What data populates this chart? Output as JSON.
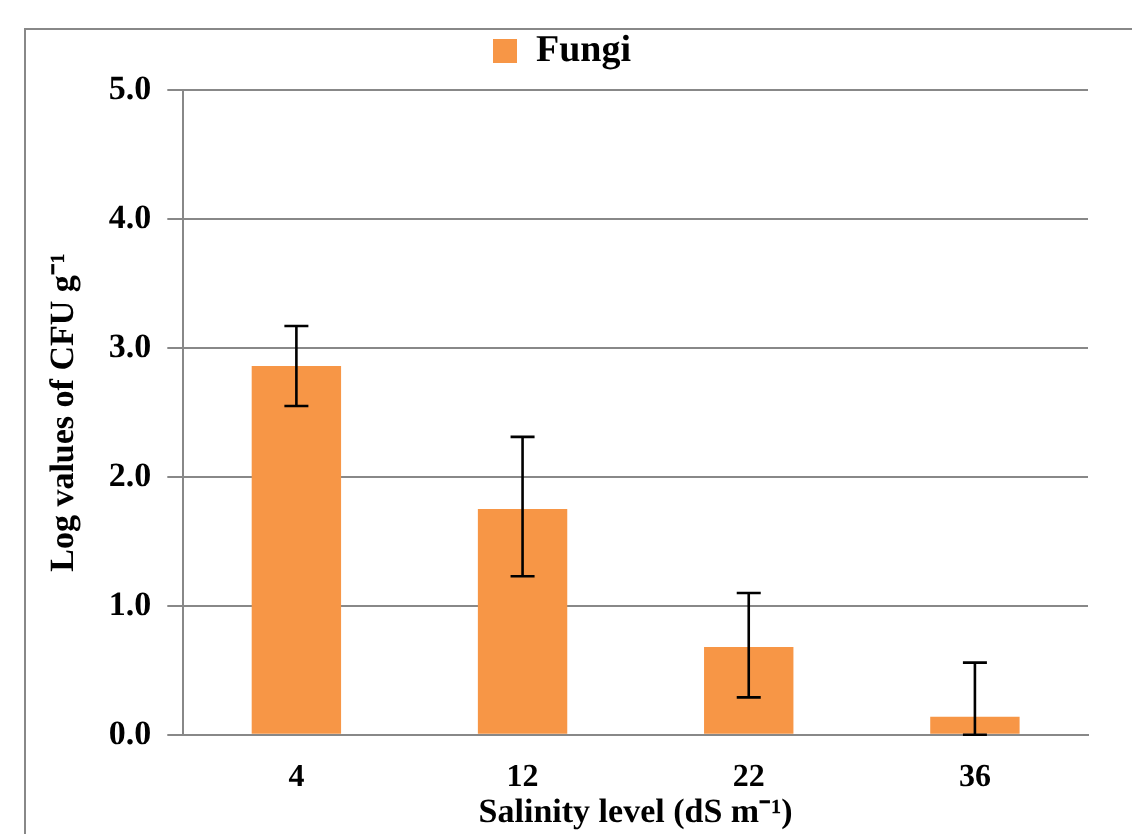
{
  "chart_data": {
    "type": "bar",
    "categories": [
      "4",
      "12",
      "22",
      "36"
    ],
    "series": [
      {
        "name": "Fungi",
        "color": "#f79646",
        "values": [
          2.86,
          1.75,
          0.68,
          0.14
        ],
        "errors": [
          [
            2.55,
            3.17
          ],
          [
            1.23,
            2.31
          ],
          [
            0.29,
            1.1
          ],
          [
            0.0,
            0.56
          ]
        ]
      }
    ],
    "xlabel": "Salinity level (dS m⁻¹)",
    "ylabel": "Log values of CFU g⁻¹",
    "ylim": [
      0,
      5
    ],
    "yticks": [
      {
        "value": 0,
        "label": "0.0"
      },
      {
        "value": 1,
        "label": "1.0"
      },
      {
        "value": 2,
        "label": "2.0"
      },
      {
        "value": 3,
        "label": "3.0"
      },
      {
        "value": 4,
        "label": "4.0"
      },
      {
        "value": 5,
        "label": "5.0"
      }
    ],
    "grid": "y",
    "legend": "top"
  }
}
